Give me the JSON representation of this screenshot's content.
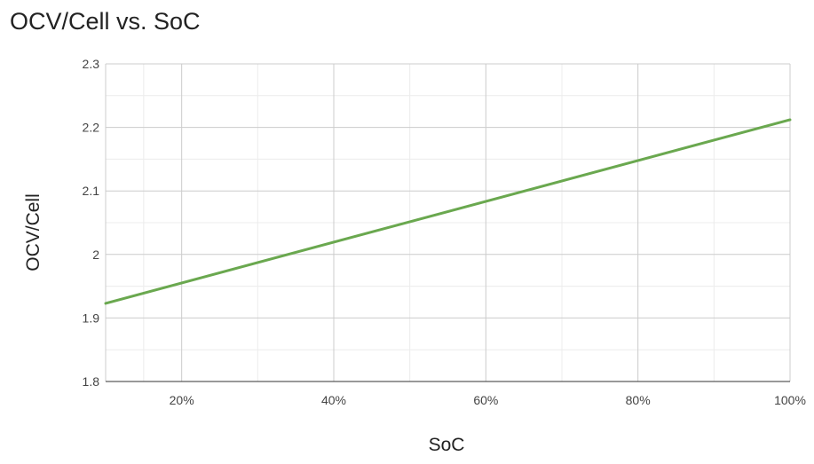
{
  "chart_data": {
    "type": "line",
    "title": "OCV/Cell vs. SoC",
    "xlabel": "SoC",
    "ylabel": "OCV/Cell",
    "x": [
      10,
      100
    ],
    "xlim": [
      10,
      100
    ],
    "ylim": [
      1.8,
      2.3
    ],
    "x_ticks": [
      {
        "value": 20,
        "label": "20%"
      },
      {
        "value": 40,
        "label": "40%"
      },
      {
        "value": 60,
        "label": "60%"
      },
      {
        "value": 80,
        "label": "80%"
      },
      {
        "value": 100,
        "label": "100%"
      }
    ],
    "y_ticks": [
      {
        "value": 1.8,
        "label": "1.8"
      },
      {
        "value": 1.9,
        "label": "1.9"
      },
      {
        "value": 2.0,
        "label": "2"
      },
      {
        "value": 2.1,
        "label": "2.1"
      },
      {
        "value": 2.2,
        "label": "2.2"
      },
      {
        "value": 2.3,
        "label": "2.3"
      }
    ],
    "series": [
      {
        "color": "#6aa84f",
        "x": [
          10,
          100
        ],
        "values": [
          1.923,
          2.212
        ]
      }
    ],
    "grid": true,
    "legend": "none"
  }
}
